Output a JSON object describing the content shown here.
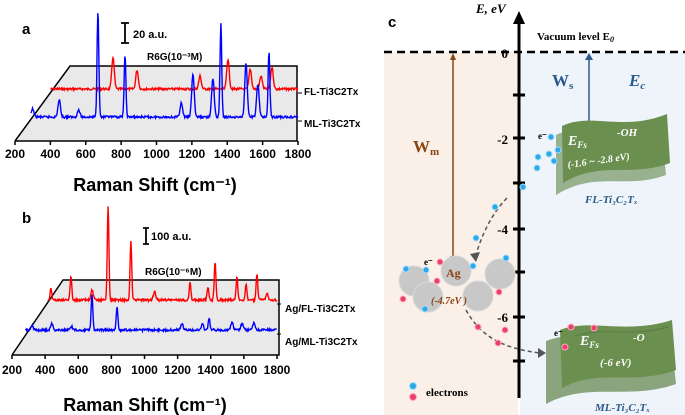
{
  "chart_data": [
    {
      "panel": "a",
      "type": "line",
      "xlabel": "Raman Shift (cm⁻¹)",
      "xlim": [
        200,
        1800
      ],
      "xticks": [
        "200",
        "400",
        "600",
        "800",
        "1000",
        "1200",
        "1400",
        "1600",
        "1800"
      ],
      "scale_bar": "20 a.u.",
      "annotation": "R6G(10⁻³M)",
      "series": [
        {
          "name": "FL-Ti3C2Tx",
          "color": "#ff0000",
          "x_start": 400,
          "peaks": [
            [
              754,
              32
            ],
            [
              890,
              19
            ],
            [
              1246,
              13
            ],
            [
              1404,
              30
            ],
            [
              1530,
              20
            ],
            [
              1591,
              13
            ],
            [
              1653,
              22
            ]
          ]
        },
        {
          "name": "ML-Ti3C2Tx",
          "color": "#0000ff",
          "x_start": 290,
          "peaks": [
            [
              300,
              8
            ],
            [
              450,
              17
            ],
            [
              560,
              7
            ],
            [
              669,
              107
            ],
            [
              822,
              61
            ],
            [
              1140,
              14
            ],
            [
              1206,
              43
            ],
            [
              1319,
              39
            ],
            [
              1364,
              93
            ],
            [
              1506,
              54
            ],
            [
              1573,
              33
            ],
            [
              1636,
              65
            ]
          ]
        }
      ]
    },
    {
      "panel": "b",
      "type": "line",
      "xlabel": "Raman Shift (cm⁻¹)",
      "xlim": [
        200,
        1800
      ],
      "xticks": [
        "200",
        "400",
        "600",
        "800",
        "1000",
        "1200",
        "1400",
        "1600",
        "1800"
      ],
      "scale_bar": "100 a.u.",
      "annotation": "R6G(10⁻⁶M)",
      "series": [
        {
          "name": "Ag/FL-Ti3C2Tx",
          "color": "#ff0000",
          "x_start": 417,
          "peaks": [
            [
              435,
              75
            ],
            [
              556,
              150
            ],
            [
              683,
              60
            ],
            [
              780,
              580
            ],
            [
              918,
              370
            ],
            [
              1060,
              50
            ],
            [
              1275,
              110
            ],
            [
              1383,
              80
            ],
            [
              1426,
              240
            ],
            [
              1558,
              145
            ],
            [
              1613,
              95
            ],
            [
              1679,
              160
            ],
            [
              1740,
              40
            ]
          ]
        },
        {
          "name": "Ag/ML-Ti3C2Tx",
          "color": "#0000ff",
          "x_start": 280,
          "peaks": [
            [
              320,
              30
            ],
            [
              440,
              40
            ],
            [
              560,
              20
            ],
            [
              683,
              225
            ],
            [
              834,
              145
            ],
            [
              1226,
              40
            ],
            [
              1350,
              35
            ],
            [
              1390,
              75
            ],
            [
              1528,
              50
            ],
            [
              1589,
              40
            ],
            [
              1661,
              45
            ]
          ]
        }
      ]
    }
  ],
  "panel_a_label": "a",
  "panel_b_label": "b",
  "diagram": {
    "label": "c",
    "axis_title": "E, eV",
    "ticks": [
      "0",
      "-2",
      "-4",
      "-6"
    ],
    "vacuum_level": "Vacuum level E",
    "vacuum_sub": "0",
    "ws": "W",
    "ws_sub": "s",
    "wm": "W",
    "wm_sub": "m",
    "ec": "E",
    "ec_sub": "c",
    "fl_banner": {
      "efs": "E",
      "efs_sub": "Fs",
      "group": "-OH",
      "range": "(-1.6 ~ -2.8 eV)",
      "name": "FL-Ti₃C₂Tₓ"
    },
    "ml_banner": {
      "efs": "E",
      "efs_sub": "Fs",
      "group": "-O",
      "range": "(-6 eV)",
      "name": "ML-Ti₃C₂Tₓ"
    },
    "ag": {
      "label": "Ag",
      "value": "(-4.7eV )"
    },
    "electron_label": "e⁻",
    "legend": "electrons",
    "colors": {
      "metal_bg": "#fbf0e8",
      "semi_bg": "#eef4fa",
      "wm": "#8b4513",
      "ws": "#2a5a8a",
      "banner": "#6b8f4e",
      "electron_blue": "#2aa8e8",
      "electron_red": "#e8406a"
    }
  }
}
